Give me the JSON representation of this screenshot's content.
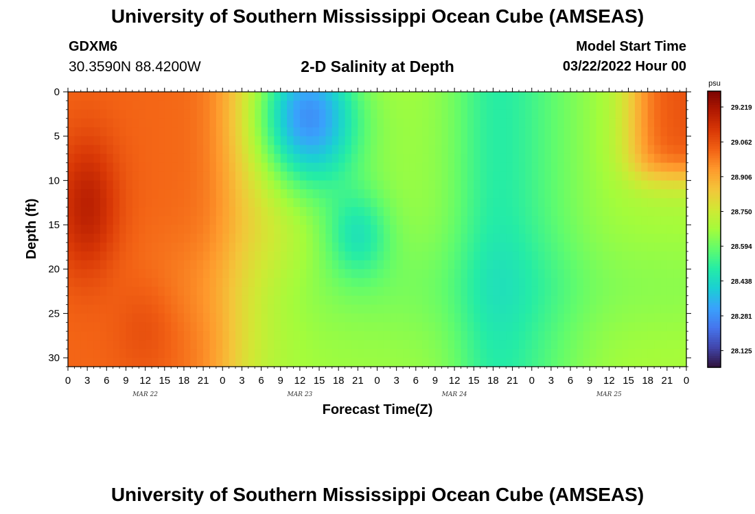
{
  "header": {
    "title": "University of Southern Mississippi Ocean Cube (AMSEAS)",
    "station_id": "GDXM6",
    "station_coords": "30.3590N  88.4200W",
    "plot_title": "2-D Salinity at Depth",
    "start_label": "Model Start Time",
    "start_value": "03/22/2022 Hour 00"
  },
  "footer": {
    "title": "University of Southern Mississippi Ocean Cube (AMSEAS)"
  },
  "chart_data": {
    "type": "heatmap",
    "title": "2-D Salinity at Depth",
    "xlabel": "Forecast Time(Z)",
    "ylabel": "Depth (ft)",
    "x_hours_range": [
      0,
      96
    ],
    "x_tick_hours": [
      0,
      3,
      6,
      9,
      12,
      15,
      18,
      21,
      24,
      27,
      30,
      33,
      36,
      39,
      42,
      45,
      48,
      51,
      54,
      57,
      60,
      63,
      66,
      69,
      72,
      75,
      78,
      81,
      84,
      87,
      90,
      93,
      96
    ],
    "x_tick_labels": [
      "0",
      "3",
      "6",
      "9",
      "12",
      "15",
      "18",
      "21",
      "0",
      "3",
      "6",
      "9",
      "12",
      "15",
      "18",
      "21",
      "0",
      "3",
      "6",
      "9",
      "12",
      "15",
      "18",
      "21",
      "0",
      "3",
      "6",
      "9",
      "12",
      "15",
      "18",
      "21",
      "0"
    ],
    "day_labels": [
      {
        "label": "MAR 22",
        "hour": 12
      },
      {
        "label": "MAR 23",
        "hour": 36
      },
      {
        "label": "MAR 24",
        "hour": 60
      },
      {
        "label": "MAR 25",
        "hour": 84
      }
    ],
    "ylim": [
      0,
      31
    ],
    "y_ticks": [
      0,
      5,
      10,
      15,
      20,
      25,
      30
    ],
    "y_tick_labels": [
      "0",
      "5",
      "10",
      "15",
      "20",
      "25",
      "30"
    ],
    "colorbar": {
      "unit": "psu",
      "min": 28.05,
      "max": 29.29,
      "labels": [
        "29.219",
        "29.062",
        "28.906",
        "28.750",
        "28.594",
        "28.438",
        "28.281",
        "28.125"
      ]
    },
    "colormap": [
      "#30123b",
      "#4145ab",
      "#4675ed",
      "#39a2fc",
      "#1bcfd4",
      "#24eca6",
      "#61fc6c",
      "#a4fc3b",
      "#d1e834",
      "#f3c63a",
      "#fe9b2d",
      "#f36315",
      "#d93806",
      "#b11901",
      "#7a0402"
    ],
    "series_description": "salinity (psu) versus forecast hour (x) and depth in ft (y)"
  }
}
